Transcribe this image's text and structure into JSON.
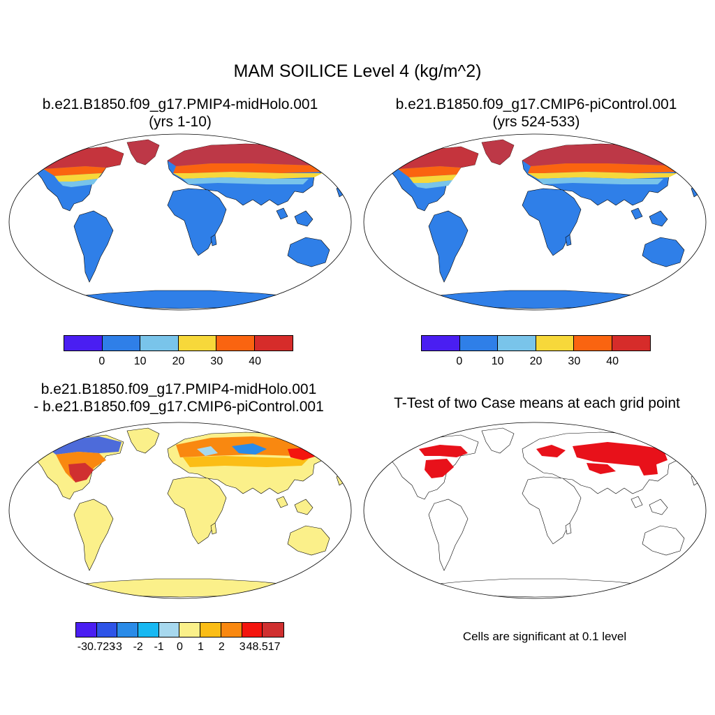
{
  "title": "MAM SOILICE Level 4 (kg/m^2)",
  "panels": {
    "top_left": {
      "title_line1": "b.e21.B1850.f09_g17.PMIP4-midHolo.001",
      "title_line2": "(yrs 1-10)",
      "colorbar": {
        "colors": [
          "#4a1ef2",
          "#2f7fe8",
          "#79c4ea",
          "#f7d83a",
          "#fa6410",
          "#d62c2a"
        ],
        "labels": [
          "0",
          "10",
          "20",
          "30",
          "40"
        ]
      }
    },
    "top_right": {
      "title_line1": "b.e21.B1850.f09_g17.CMIP6-piControl.001",
      "title_line2": "(yrs 524-533)",
      "colorbar": {
        "colors": [
          "#4a1ef2",
          "#2f7fe8",
          "#79c4ea",
          "#f7d83a",
          "#fa6410",
          "#d62c2a"
        ],
        "labels": [
          "0",
          "10",
          "20",
          "30",
          "40"
        ]
      }
    },
    "bottom_left": {
      "title_line1": "b.e21.B1850.f09_g17.PMIP4-midHolo.001",
      "title_line2": "- b.e21.B1850.f09_g17.CMIP6-piControl.001",
      "colorbar": {
        "colors": [
          "#4a1ef2",
          "#2e54e8",
          "#2a8be8",
          "#17b8f2",
          "#a7d8ee",
          "#faf08a",
          "#fbbd16",
          "#f98810",
          "#f4150e",
          "#d03030"
        ],
        "labels": [
          "-30.723",
          "-3",
          "-2",
          "-1",
          "0",
          "1",
          "2",
          "3",
          "48.517"
        ]
      }
    },
    "bottom_right": {
      "title_line1": "T-Test of two Case means at each grid point",
      "note": "Cells are significant at 0.1 level",
      "significance_color": "#e8111a"
    }
  },
  "colors": {
    "land_blue": "#2f7fe8",
    "land_yellow": "#fbf08a",
    "coast": "#000000"
  }
}
